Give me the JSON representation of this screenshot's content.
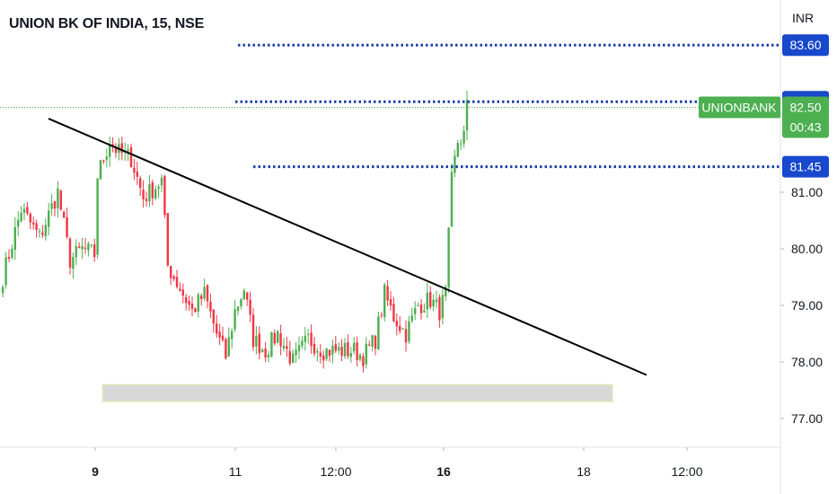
{
  "colors": {
    "up": "#4caf50",
    "down": "#f23645",
    "level_line": "#1e3fa8",
    "current_badge": "#4caf50",
    "level_badge": "#1848cc",
    "trendline": "#000000",
    "support_zone": "#d9d9d9"
  },
  "chart_data": {
    "type": "candlestick",
    "title": "UNION BK OF INDIA, 15, NSE",
    "symbol": "UNIONBANK",
    "currency": "INR",
    "interval": "15",
    "exchange": "NSE",
    "y_ticks": [
      "77.00",
      "78.00",
      "79.00",
      "80.00",
      "81.00"
    ],
    "y_range": [
      76.5,
      84.0
    ],
    "x_ticks": [
      {
        "label": "9",
        "bold": true
      },
      {
        "label": "11",
        "bold": false
      },
      {
        "label": "12:00",
        "bold": false
      },
      {
        "label": "16",
        "bold": true
      },
      {
        "label": "18",
        "bold": false
      },
      {
        "label": "12:00",
        "bold": false
      }
    ],
    "last_price": {
      "value": "82.50",
      "countdown": "00:43"
    },
    "horizontal_levels": [
      {
        "value": "83.60"
      },
      {
        "value": "82.60"
      },
      {
        "value": "81.45"
      }
    ],
    "trendline": {
      "start": [
        0,
        82.3
      ],
      "end": [
        200,
        77.77
      ]
    },
    "support_zone": {
      "x_start": 33,
      "x_end": 200,
      "low": 77.3,
      "high": 77.6
    },
    "anchors": [
      {
        "i": 0,
        "p": 79.5
      },
      {
        "i": 6,
        "p": 80.7
      },
      {
        "i": 12,
        "p": 80.2
      },
      {
        "i": 18,
        "p": 81.0
      },
      {
        "i": 22,
        "p": 79.8
      },
      {
        "i": 26,
        "p": 80.0
      },
      {
        "i": 30,
        "p": 79.9
      },
      {
        "i": 31,
        "p": 81.3
      },
      {
        "i": 35,
        "p": 81.9
      },
      {
        "i": 38,
        "p": 81.7
      },
      {
        "i": 42,
        "p": 81.6
      },
      {
        "i": 46,
        "p": 80.9
      },
      {
        "i": 52,
        "p": 81.2
      },
      {
        "i": 54,
        "p": 79.7
      },
      {
        "i": 58,
        "p": 79.3
      },
      {
        "i": 62,
        "p": 78.9
      },
      {
        "i": 66,
        "p": 79.2
      },
      {
        "i": 70,
        "p": 78.5
      },
      {
        "i": 73,
        "p": 78.1
      },
      {
        "i": 76,
        "p": 78.9
      },
      {
        "i": 79,
        "p": 79.3
      },
      {
        "i": 82,
        "p": 78.4
      },
      {
        "i": 86,
        "p": 78.2
      },
      {
        "i": 90,
        "p": 78.5
      },
      {
        "i": 95,
        "p": 78.0
      },
      {
        "i": 100,
        "p": 78.4
      },
      {
        "i": 105,
        "p": 78.2
      },
      {
        "i": 110,
        "p": 78.2
      },
      {
        "i": 115,
        "p": 78.2
      },
      {
        "i": 118,
        "p": 78.1
      },
      {
        "i": 122,
        "p": 78.4
      },
      {
        "i": 125,
        "p": 79.2
      },
      {
        "i": 128,
        "p": 78.8
      },
      {
        "i": 132,
        "p": 78.5
      },
      {
        "i": 136,
        "p": 79.0
      },
      {
        "i": 140,
        "p": 79.1
      },
      {
        "i": 143,
        "p": 78.9
      },
      {
        "i": 145,
        "p": 79.2
      },
      {
        "i": 147,
        "p": 81.2
      },
      {
        "i": 149,
        "p": 81.9
      },
      {
        "i": 151,
        "p": 82.0
      },
      {
        "i": 152,
        "p": 82.5
      }
    ]
  }
}
